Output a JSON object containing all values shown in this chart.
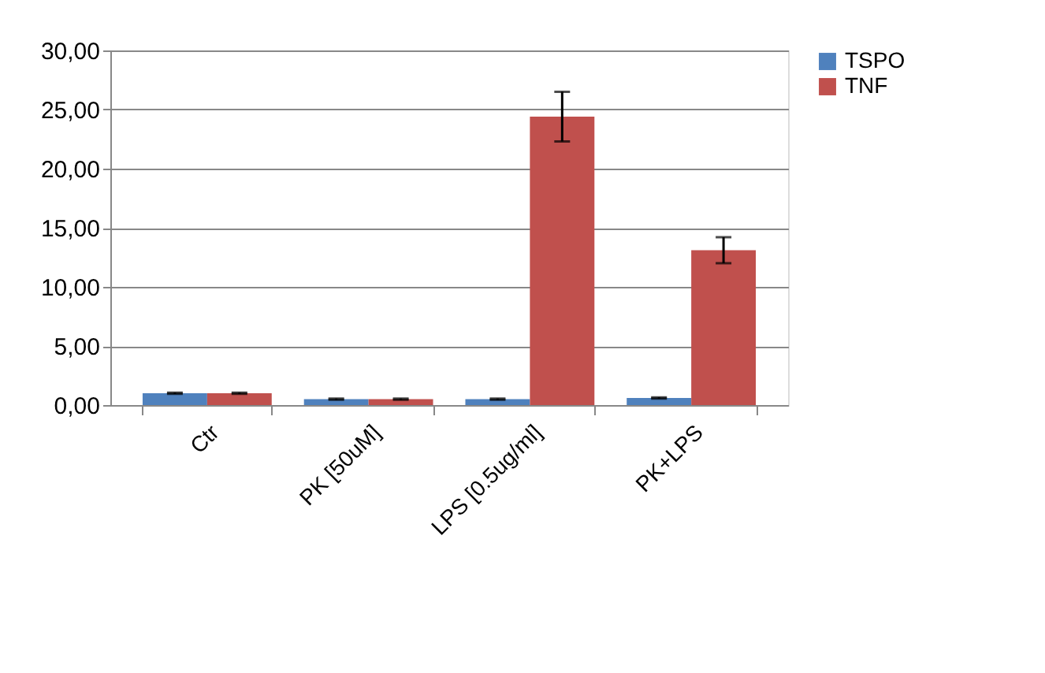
{
  "chart_data": {
    "type": "bar",
    "categories": [
      "Ctr",
      "PK [50uM]",
      "LPS [0.5ug/ml]",
      "PK+LPS"
    ],
    "series": [
      {
        "name": "TSPO",
        "color": "#4f81bd",
        "values": [
          1.0,
          0.5,
          0.5,
          0.6
        ],
        "errors": [
          0.05,
          0.05,
          0.05,
          0.05
        ]
      },
      {
        "name": "TNF",
        "color": "#c0504d",
        "values": [
          1.0,
          0.5,
          24.4,
          13.1
        ],
        "errors": [
          0.05,
          0.05,
          2.1,
          1.1
        ]
      }
    ],
    "ylim": [
      0,
      30
    ],
    "yticks": [
      {
        "value": 0,
        "label": "0,00"
      },
      {
        "value": 5,
        "label": "5,00"
      },
      {
        "value": 10,
        "label": "10,00"
      },
      {
        "value": 15,
        "label": "15,00"
      },
      {
        "value": 20,
        "label": "20,00"
      },
      {
        "value": 25,
        "label": "25,00"
      },
      {
        "value": 30,
        "label": "30,00"
      }
    ],
    "grid": "y",
    "legend": "right"
  }
}
